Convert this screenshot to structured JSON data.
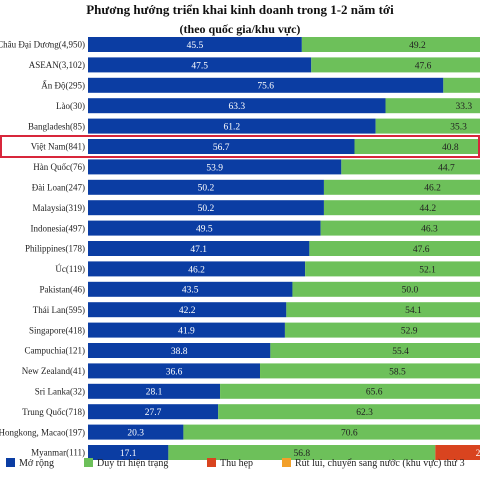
{
  "chart_data": {
    "type": "bar",
    "orientation": "horizontal",
    "stacked": true,
    "title": "Phương hướng triển khai kinh doanh trong 1-2 năm tới",
    "subtitle": "(theo quốc gia/khu vực)",
    "categories": [
      "Châu Đại Dương(4,950)",
      "ASEAN(3,102)",
      "Ấn Độ(295)",
      "Lào(30)",
      "Bangladesh(85)",
      "Việt Nam(841)",
      "Hàn Quốc(76)",
      "Đài Loan(247)",
      "Malaysia(319)",
      "Indonesia(497)",
      "Philippines(178)",
      "Úc(119)",
      "Pakistan(46)",
      "Thái Lan(595)",
      "Singapore(418)",
      "Campuchia(121)",
      "New Zealand(41)",
      "Sri Lanka(32)",
      "Trung Quốc(718)",
      "Hongkong, Macao(197)",
      "Myanmar(111)"
    ],
    "series": [
      {
        "name": "Mở rộng",
        "color": "#0b3da3",
        "values": [
          45.5,
          47.5,
          75.6,
          63.3,
          61.2,
          56.7,
          53.9,
          50.2,
          50.2,
          49.5,
          47.1,
          46.2,
          43.5,
          42.2,
          41.9,
          38.8,
          36.6,
          28.1,
          27.7,
          20.3,
          17.1
        ]
      },
      {
        "name": "Duy trì hiện trạng",
        "color": "#6dc05a",
        "values": [
          49.2,
          47.6,
          22.7,
          33.3,
          35.3,
          40.8,
          44.7,
          46.2,
          44.2,
          46.3,
          47.6,
          52.1,
          50.0,
          54.1,
          52.9,
          55.4,
          58.5,
          65.6,
          62.3,
          70.6,
          56.8
        ]
      },
      {
        "name": "Thu hẹp",
        "color": "#d9441f",
        "values": [
          null,
          null,
          null,
          null,
          null,
          null,
          null,
          null,
          null,
          null,
          null,
          null,
          null,
          null,
          null,
          null,
          null,
          null,
          9.0,
          8.0,
          20.7
        ]
      },
      {
        "name": "Rút lui, chuyển sang nước (khu vực) thứ 3",
        "color": "#f2a02a",
        "values": [
          null,
          null,
          null,
          null,
          null,
          null,
          null,
          null,
          null,
          null,
          null,
          null,
          null,
          null,
          null,
          null,
          null,
          null,
          null,
          null,
          null
        ]
      }
    ],
    "highlighted_category": "Việt Nam(841)",
    "highlight_color": "#d8263b",
    "xlim": [
      0,
      100
    ],
    "legend_position": "bottom",
    "grid": false
  }
}
